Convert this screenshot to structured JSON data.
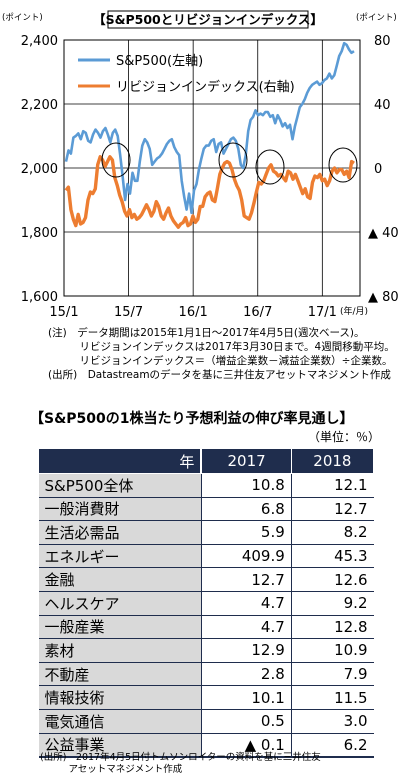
{
  "chart_data": {
    "type": "line",
    "title": "【S&P500とリビジョンインデックス】",
    "y_left_unit": "(ポイント)",
    "y_right_unit": "(ポイント)",
    "x_unit": "(年/月)",
    "ylim_left": [
      1600,
      2400
    ],
    "ylim_right": [
      -80,
      80
    ],
    "yticks_left": [
      "2,400",
      "2,200",
      "2,000",
      "1,800",
      "1,600"
    ],
    "yticks_right": [
      "80",
      "40",
      "0",
      "▲ 40",
      "▲ 80"
    ],
    "xticks": [
      "15/1",
      "15/7",
      "16/1",
      "16/7",
      "17/1"
    ],
    "legend_position": "top-left",
    "series": [
      {
        "name": "S&P500(左軸)",
        "color": "#5b9bd5",
        "axis": "left",
        "values": [
          2020,
          2055,
          2045,
          2095,
          2100,
          2108,
          2090,
          2115,
          2110,
          2085,
          2080,
          2105,
          2120,
          2110,
          2095,
          2115,
          2125,
          2105,
          2080,
          2110,
          2120,
          2100,
          2040,
          1975,
          1900,
          1950,
          1920,
          1985,
          1960,
          1960,
          2020,
          2070,
          2090,
          2080,
          2060,
          2010,
          2020,
          2030,
          2035,
          2045,
          2060,
          2075,
          2085,
          2090,
          2065,
          2050,
          2040,
          1960,
          1910,
          1870,
          1920,
          1860,
          1930,
          1950,
          1995,
          2030,
          2060,
          2070,
          2070,
          2085,
          2090,
          2050,
          2075,
          2080,
          2045,
          2060,
          2075,
          2090,
          2095,
          2085,
          2060,
          2010,
          2000,
          2040,
          2115,
          2150,
          2160,
          2180,
          2165,
          2170,
          2165,
          2175,
          2175,
          2160,
          2165,
          2140,
          2165,
          2150,
          2130,
          2140,
          2125,
          2135,
          2090,
          2130,
          2160,
          2190,
          2200,
          2215,
          2235,
          2250,
          2260,
          2265,
          2270,
          2260,
          2265,
          2275,
          2280,
          2295,
          2280,
          2290,
          2320,
          2350,
          2365,
          2390,
          2385,
          2370,
          2360,
          2365
        ]
      },
      {
        "name": "リビジョンインデックス(右軸)",
        "color": "#ed7d31",
        "axis": "right",
        "values": [
          -14,
          -12,
          -26,
          -32,
          -36,
          -29,
          -35,
          -34,
          -31,
          -20,
          -15,
          -16,
          -13,
          2,
          7,
          5,
          1,
          4,
          7,
          5,
          -6,
          -11,
          -17,
          -21,
          -27,
          -30,
          -26,
          -31,
          -29,
          -32,
          -31,
          -29,
          -26,
          -23,
          -26,
          -30,
          -27,
          -21,
          -24,
          -30,
          -32,
          -28,
          -25,
          -30,
          -33,
          -35,
          -37,
          -35,
          -34,
          -31,
          -36,
          -35,
          -30,
          -34,
          -32,
          -24,
          -24,
          -18,
          -16,
          -15,
          -20,
          -21,
          -13,
          -4,
          0,
          3,
          4,
          3,
          -1,
          -7,
          -11,
          -14,
          -20,
          -30,
          -31,
          -32,
          -28,
          -22,
          -15,
          -9,
          -10,
          -8,
          -4,
          0,
          2,
          -2,
          -3,
          -5,
          -4,
          -6,
          -8,
          -2,
          -3,
          -7,
          -4,
          -8,
          -12,
          -16,
          -13,
          -18,
          -19,
          -9,
          -5,
          -6,
          -4,
          -8,
          -7,
          -11,
          -8,
          -2,
          0,
          -3,
          -1,
          -1,
          -4,
          -2,
          -6,
          4,
          3
        ]
      }
    ],
    "annotations": [
      "circle near 15/6",
      "circle near 16/5",
      "circle near 16/8",
      "circle near 17/3"
    ]
  },
  "notes": [
    "(注)　データ期間は2015年1月1日～2017年4月5日(週次ベース)。",
    "　　　リビジョンインデックスは2017年3月30日まで。4週間移動平均。",
    "　　　リビジョンインデックス＝（増益企業数－減益企業数）÷企業数。",
    "(出所)　Datastreamのデータを基に三井住友アセットマネジメント作成"
  ],
  "table": {
    "title": "【S&P500の1株当たり予想利益の伸び率見通し】",
    "unit": "（単位：％）",
    "header": [
      "年",
      "2017",
      "2018"
    ],
    "rows": [
      {
        "label": "S&P500全体",
        "v2017": "10.8",
        "v2018": "12.1"
      },
      {
        "label": "一般消費財",
        "v2017": "6.8",
        "v2018": "12.7"
      },
      {
        "label": "生活必需品",
        "v2017": "5.9",
        "v2018": "8.2"
      },
      {
        "label": "エネルギー",
        "v2017": "409.9",
        "v2018": "45.3"
      },
      {
        "label": "金融",
        "v2017": "12.7",
        "v2018": "12.6"
      },
      {
        "label": "ヘルスケア",
        "v2017": "4.7",
        "v2018": "9.2"
      },
      {
        "label": "一般産業",
        "v2017": "4.7",
        "v2018": "12.8"
      },
      {
        "label": "素材",
        "v2017": "12.9",
        "v2018": "10.9"
      },
      {
        "label": "不動産",
        "v2017": "2.8",
        "v2018": "7.9"
      },
      {
        "label": "情報技術",
        "v2017": "10.1",
        "v2018": "11.5"
      },
      {
        "label": "電気通信",
        "v2017": "0.5",
        "v2018": "3.0"
      },
      {
        "label": "公益事業",
        "v2017": "▲ 0.1",
        "v2018": "6.2"
      }
    ],
    "source": [
      "(出所)　2017年4月5日付トムソンロイターの資料を基に三井住友",
      "　　　アセットマネジメント作成"
    ]
  }
}
